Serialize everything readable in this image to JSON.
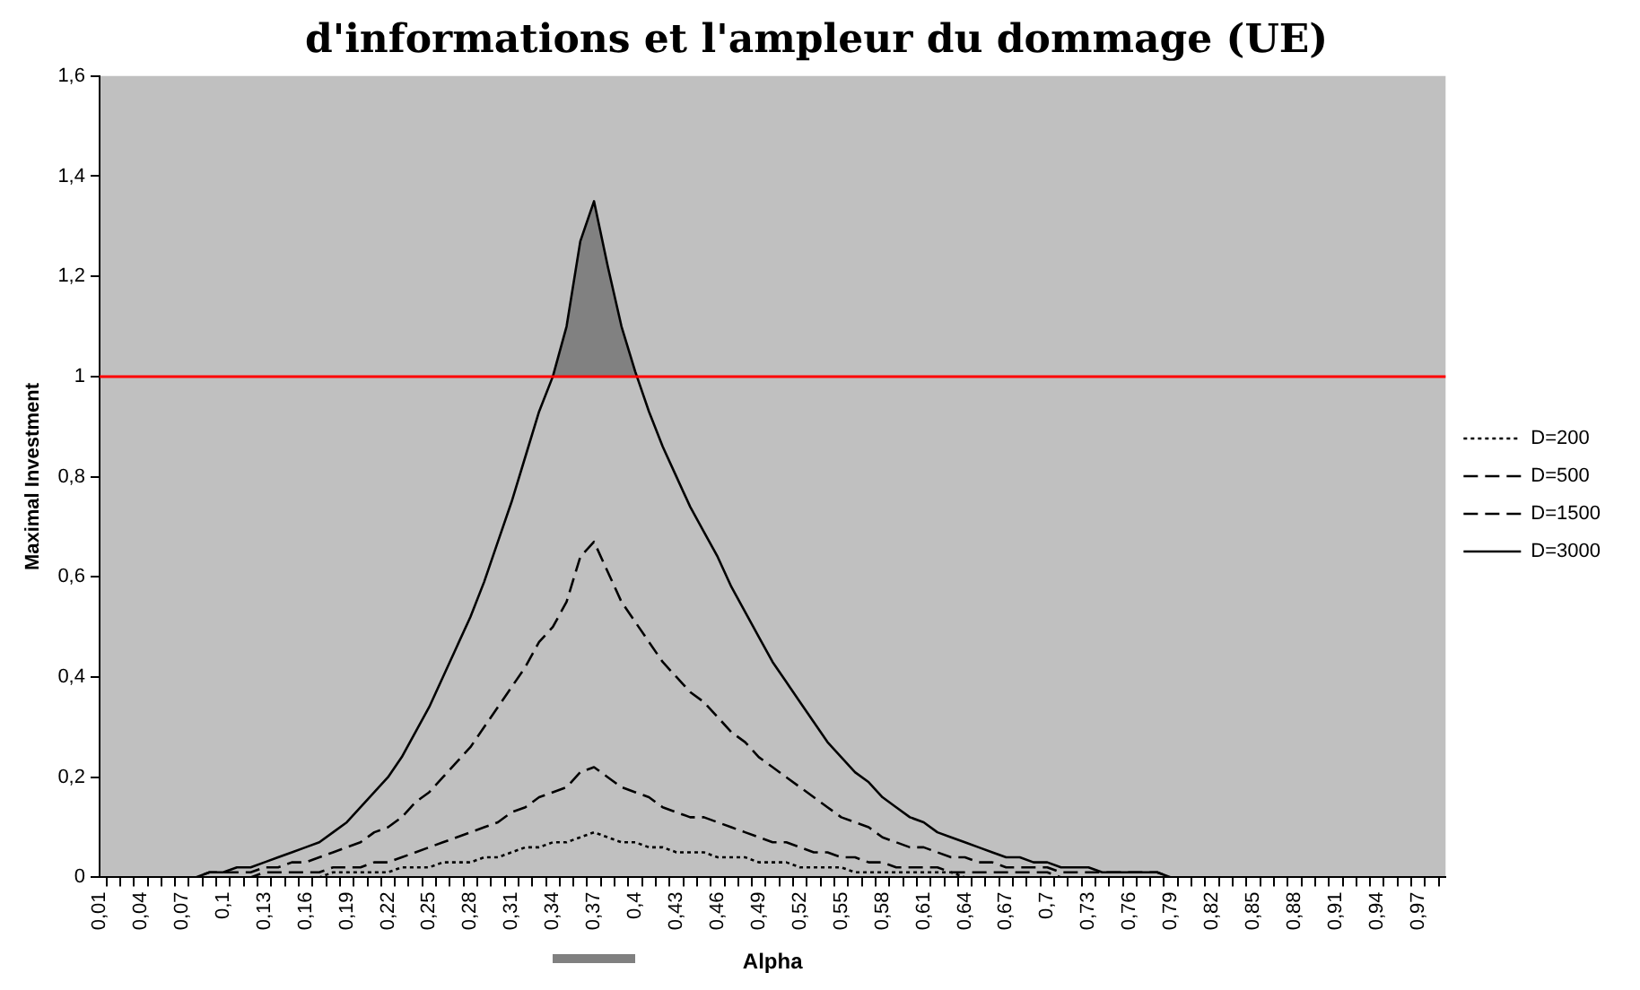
{
  "chart_data": {
    "type": "line",
    "title": "d'informations et l'ampleur du dommage (UE)",
    "xlabel": "Alpha",
    "ylabel": "Maximal Investment",
    "categories": [
      "0,01",
      null,
      null,
      "0,04",
      null,
      null,
      "0,07",
      null,
      null,
      "0,1",
      null,
      null,
      "0,13",
      null,
      null,
      "0,16",
      null,
      null,
      "0,19",
      null,
      null,
      "0,22",
      null,
      null,
      "0,25",
      null,
      null,
      "0,28",
      null,
      null,
      "0,31",
      null,
      null,
      "0,34",
      null,
      null,
      "0,37",
      null,
      null,
      "0,4",
      null,
      null,
      "0,43",
      null,
      null,
      "0,46",
      null,
      null,
      "0,49",
      null,
      null,
      "0,52",
      null,
      null,
      "0,55",
      null,
      null,
      "0,58",
      null,
      null,
      "0,61",
      null,
      null,
      "0,64",
      null,
      null,
      "0,67",
      null,
      null,
      "0,7",
      null,
      null,
      "0,73",
      null,
      null,
      "0,76",
      null,
      null,
      "0,79",
      null,
      null,
      "0,82",
      null,
      null,
      "0,85",
      null,
      null,
      "0,88",
      null,
      null,
      "0,91",
      null,
      null,
      "0,94",
      null,
      null,
      "0,97",
      null,
      null
    ],
    "series": [
      {
        "name": "D=200",
        "color": "#000000",
        "line_style": "dotted",
        "values": [
          null,
          null,
          null,
          null,
          null,
          null,
          0,
          0,
          0,
          0,
          0,
          0,
          0,
          0,
          0,
          0,
          0,
          0.01,
          0.01,
          0.01,
          0.01,
          0.01,
          0.02,
          0.02,
          0.02,
          0.03,
          0.03,
          0.03,
          0.04,
          0.04,
          0.05,
          0.06,
          0.06,
          0.07,
          0.07,
          0.08,
          0.09,
          0.08,
          0.07,
          0.07,
          0.06,
          0.06,
          0.05,
          0.05,
          0.05,
          0.04,
          0.04,
          0.04,
          0.03,
          0.03,
          0.03,
          0.02,
          0.02,
          0.02,
          0.02,
          0.01,
          0.01,
          0.01,
          0.01,
          0.01,
          0.01,
          0.01,
          0.01,
          0,
          0,
          0,
          0,
          0,
          0,
          0,
          0,
          0,
          0,
          0,
          0,
          0,
          0,
          0,
          0,
          0,
          0,
          0,
          0,
          0,
          0,
          null,
          null,
          null,
          null,
          null,
          null,
          null,
          null,
          null,
          null,
          null,
          null,
          null,
          null
        ]
      },
      {
        "name": "D=500",
        "color": "#000000",
        "line_style": "dashed",
        "values": [
          null,
          null,
          null,
          null,
          null,
          null,
          0,
          0,
          0,
          0,
          0,
          0,
          0.01,
          0.01,
          0.01,
          0.01,
          0.01,
          0.02,
          0.02,
          0.02,
          0.03,
          0.03,
          0.04,
          0.05,
          0.06,
          0.07,
          0.08,
          0.09,
          0.1,
          0.11,
          0.13,
          0.14,
          0.16,
          0.17,
          0.18,
          0.21,
          0.22,
          0.2,
          0.18,
          0.17,
          0.16,
          0.14,
          0.13,
          0.12,
          0.12,
          0.11,
          0.1,
          0.09,
          0.08,
          0.07,
          0.07,
          0.06,
          0.05,
          0.05,
          0.04,
          0.04,
          0.03,
          0.03,
          0.02,
          0.02,
          0.02,
          0.02,
          0.01,
          0.01,
          0.01,
          0.01,
          0.01,
          0.01,
          0.01,
          0.01,
          0,
          0,
          0,
          0,
          0,
          0,
          0,
          0,
          0,
          0,
          0,
          0,
          0,
          0,
          0,
          null,
          null,
          null,
          null,
          null,
          null,
          null,
          null,
          null,
          null,
          null,
          null,
          null,
          null
        ]
      },
      {
        "name": "D=1500",
        "color": "#000000",
        "line_style": "dashed",
        "values": [
          null,
          null,
          null,
          null,
          null,
          null,
          0,
          0,
          0.01,
          0.01,
          0.01,
          0.01,
          0.02,
          0.02,
          0.03,
          0.03,
          0.04,
          0.05,
          0.06,
          0.07,
          0.09,
          0.1,
          0.12,
          0.15,
          0.17,
          0.2,
          0.23,
          0.26,
          0.3,
          0.34,
          0.38,
          0.42,
          0.47,
          0.5,
          0.55,
          0.64,
          0.67,
          0.61,
          0.55,
          0.51,
          0.47,
          0.43,
          0.4,
          0.37,
          0.35,
          0.32,
          0.29,
          0.27,
          0.24,
          0.22,
          0.2,
          0.18,
          0.16,
          0.14,
          0.12,
          0.11,
          0.1,
          0.08,
          0.07,
          0.06,
          0.06,
          0.05,
          0.04,
          0.04,
          0.03,
          0.03,
          0.02,
          0.02,
          0.02,
          0.02,
          0.01,
          0.01,
          0.01,
          0.01,
          0.01,
          0.01,
          0.01,
          0.01,
          0,
          0,
          0,
          0,
          0,
          0,
          0,
          null,
          null,
          null,
          null,
          null,
          null,
          null,
          null,
          null,
          null,
          null,
          null,
          null,
          null
        ]
      },
      {
        "name": "D=3000",
        "color": "#000000",
        "line_style": "solid",
        "lower": [
          null,
          null,
          null,
          null,
          null,
          null,
          null,
          null,
          null,
          null,
          null,
          null,
          null,
          null,
          null,
          null,
          null,
          null,
          null,
          null,
          null,
          null,
          null,
          null,
          null,
          null,
          null,
          null,
          null,
          null,
          null,
          null,
          null,
          1,
          1,
          1,
          1,
          1,
          1,
          1,
          null,
          null,
          null,
          null,
          null,
          null,
          null,
          null,
          null,
          null,
          null,
          null,
          null,
          null,
          null,
          null,
          null,
          null,
          null,
          null,
          null,
          null,
          null,
          null,
          null,
          null,
          null,
          null,
          null,
          null,
          null,
          null,
          null,
          null,
          null,
          null,
          null,
          null,
          null,
          null,
          null,
          null,
          null,
          null,
          null,
          null,
          null,
          null,
          null,
          null,
          null,
          null,
          null,
          null,
          null,
          null,
          null,
          null,
          null
        ],
        "upper": [
          null,
          null,
          null,
          null,
          null,
          null,
          null,
          null,
          null,
          null,
          null,
          null,
          null,
          null,
          null,
          null,
          null,
          null,
          null,
          null,
          null,
          null,
          null,
          null,
          null,
          null,
          null,
          null,
          null,
          null,
          null,
          null,
          null,
          1.0,
          1.1,
          1.27,
          1.35,
          1.22,
          1.1,
          1.01,
          null,
          null,
          null,
          null,
          null,
          null,
          null,
          null,
          null,
          null,
          null,
          null,
          null,
          null,
          null,
          null,
          null,
          null,
          null,
          null,
          null,
          null,
          null,
          null,
          null,
          null,
          null,
          null,
          null,
          null,
          null,
          null,
          null,
          null,
          null,
          null,
          null,
          null,
          null,
          null,
          null,
          null,
          null,
          null,
          null,
          null,
          null,
          null,
          null,
          null,
          null,
          null,
          null,
          null,
          null,
          null,
          null,
          null,
          null
        ],
        "values": [
          null,
          null,
          null,
          null,
          null,
          null,
          0,
          0,
          0.01,
          0.01,
          0.02,
          0.02,
          0.03,
          0.04,
          0.05,
          0.06,
          0.07,
          0.09,
          0.11,
          0.14,
          0.17,
          0.2,
          0.24,
          0.29,
          0.34,
          0.4,
          0.46,
          0.52,
          0.59,
          0.67,
          0.75,
          0.84,
          0.93,
          1.0,
          1.1,
          1.27,
          1.35,
          1.22,
          1.1,
          1.01,
          0.93,
          0.86,
          0.8,
          0.74,
          0.69,
          0.64,
          0.58,
          0.53,
          0.48,
          0.43,
          0.39,
          0.35,
          0.31,
          0.27,
          0.24,
          0.21,
          0.19,
          0.16,
          0.14,
          0.12,
          0.11,
          0.09,
          0.08,
          0.07,
          0.06,
          0.05,
          0.04,
          0.04,
          0.03,
          0.03,
          0.02,
          0.02,
          0.02,
          0.01,
          0.01,
          0.01,
          0.01,
          0.01,
          0,
          0,
          0,
          0,
          0,
          0,
          0,
          null,
          null,
          null,
          null,
          null,
          null,
          null,
          null,
          null,
          null,
          null,
          null,
          null,
          null
        ]
      }
    ],
    "ylim": [
      0,
      1.6
    ],
    "yticks": [
      0,
      {
        "value": 0.2,
        "label": "0,2"
      },
      {
        "value": 0.4,
        "label": "0,4"
      },
      {
        "value": 0.6,
        "label": "0,6"
      },
      {
        "value": 0.8,
        "label": "0,8"
      },
      1,
      {
        "value": 1.2,
        "label": "1,2"
      },
      {
        "value": 1.4,
        "label": "1,4"
      },
      {
        "value": 1.6,
        "label": "1,6"
      }
    ],
    "ref_lines": [
      {
        "axis": "y",
        "value": 1,
        "color": "#ff0000"
      }
    ],
    "legend": "right",
    "marker": "none"
  }
}
